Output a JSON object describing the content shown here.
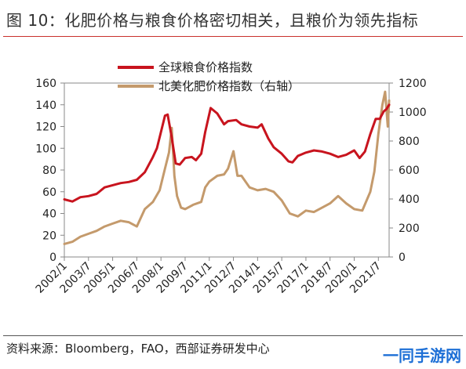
{
  "header": {
    "title": "图 10：化肥价格与粮食价格密切相关，且粮价为领先指标"
  },
  "footer": {
    "source": "资料来源：Bloomberg，FAO，西部证券研发中心",
    "watermark": "一同手游网"
  },
  "chart_data": {
    "type": "line",
    "title": "",
    "legend": {
      "placement": "top-center",
      "entries": [
        "全球粮食价格指数",
        "北美化肥价格指数（右轴）"
      ]
    },
    "x_tick_labels": [
      "2002/1",
      "2003/7",
      "2005/1",
      "2006/7",
      "2008/1",
      "2009/7",
      "2011/1",
      "2012/7",
      "2014/1",
      "2015/7",
      "2017/1",
      "2018/7",
      "2020/1",
      "2021/7"
    ],
    "x_range": [
      "2002/1",
      "2022/3"
    ],
    "y_left": {
      "range": [
        0,
        160
      ],
      "ticks": [
        0,
        20,
        40,
        60,
        80,
        100,
        120,
        140,
        160
      ]
    },
    "y_right": {
      "range": [
        0,
        1200
      ],
      "ticks": [
        0,
        200,
        400,
        600,
        800,
        1000,
        1200
      ]
    },
    "grid": false,
    "series": [
      {
        "name": "全球粮食价格指数",
        "axis": "left",
        "color": "#c8141e",
        "points": [
          [
            "2002/1",
            53
          ],
          [
            "2002/7",
            51
          ],
          [
            "2003/1",
            55
          ],
          [
            "2003/7",
            56
          ],
          [
            "2004/1",
            58
          ],
          [
            "2004/7",
            64
          ],
          [
            "2005/1",
            66
          ],
          [
            "2005/7",
            68
          ],
          [
            "2006/1",
            69
          ],
          [
            "2006/7",
            71
          ],
          [
            "2007/1",
            78
          ],
          [
            "2007/7",
            92
          ],
          [
            "2007/10",
            100
          ],
          [
            "2008/1",
            115
          ],
          [
            "2008/4",
            130
          ],
          [
            "2008/6",
            131
          ],
          [
            "2008/9",
            110
          ],
          [
            "2008/12",
            86
          ],
          [
            "2009/3",
            85
          ],
          [
            "2009/7",
            91
          ],
          [
            "2009/12",
            92
          ],
          [
            "2010/3",
            89
          ],
          [
            "2010/7",
            95
          ],
          [
            "2010/10",
            115
          ],
          [
            "2011/2",
            137
          ],
          [
            "2011/7",
            132
          ],
          [
            "2011/12",
            122
          ],
          [
            "2012/3",
            125
          ],
          [
            "2012/9",
            126
          ],
          [
            "2013/1",
            122
          ],
          [
            "2013/7",
            120
          ],
          [
            "2014/1",
            119
          ],
          [
            "2014/4",
            122
          ],
          [
            "2014/9",
            109
          ],
          [
            "2015/1",
            101
          ],
          [
            "2015/7",
            95
          ],
          [
            "2015/12",
            88
          ],
          [
            "2016/3",
            87
          ],
          [
            "2016/7",
            93
          ],
          [
            "2017/1",
            96
          ],
          [
            "2017/7",
            98
          ],
          [
            "2018/1",
            97
          ],
          [
            "2018/7",
            95
          ],
          [
            "2019/1",
            92
          ],
          [
            "2019/7",
            94
          ],
          [
            "2020/1",
            98
          ],
          [
            "2020/5",
            91
          ],
          [
            "2020/9",
            97
          ],
          [
            "2021/1",
            113
          ],
          [
            "2021/5",
            127
          ],
          [
            "2021/8",
            127
          ],
          [
            "2021/11",
            134
          ],
          [
            "2022/1",
            136
          ],
          [
            "2022/3",
            140
          ]
        ]
      },
      {
        "name": "北美化肥价格指数（右轴）",
        "axis": "right",
        "color": "#c49a6c",
        "points": [
          [
            "2002/1",
            90
          ],
          [
            "2002/7",
            105
          ],
          [
            "2003/1",
            140
          ],
          [
            "2003/7",
            160
          ],
          [
            "2004/1",
            180
          ],
          [
            "2004/7",
            210
          ],
          [
            "2005/1",
            230
          ],
          [
            "2005/7",
            250
          ],
          [
            "2006/1",
            240
          ],
          [
            "2006/7",
            210
          ],
          [
            "2007/1",
            330
          ],
          [
            "2007/7",
            380
          ],
          [
            "2007/12",
            460
          ],
          [
            "2008/4",
            610
          ],
          [
            "2008/7",
            720
          ],
          [
            "2008/9",
            890
          ],
          [
            "2008/11",
            560
          ],
          [
            "2009/1",
            420
          ],
          [
            "2009/4",
            340
          ],
          [
            "2009/7",
            330
          ],
          [
            "2010/1",
            360
          ],
          [
            "2010/7",
            380
          ],
          [
            "2010/10",
            480
          ],
          [
            "2011/1",
            520
          ],
          [
            "2011/7",
            560
          ],
          [
            "2011/12",
            570
          ],
          [
            "2012/3",
            610
          ],
          [
            "2012/7",
            730
          ],
          [
            "2012/10",
            560
          ],
          [
            "2013/1",
            560
          ],
          [
            "2013/7",
            480
          ],
          [
            "2014/1",
            460
          ],
          [
            "2014/7",
            470
          ],
          [
            "2015/1",
            450
          ],
          [
            "2015/7",
            390
          ],
          [
            "2016/1",
            300
          ],
          [
            "2016/7",
            280
          ],
          [
            "2017/1",
            320
          ],
          [
            "2017/7",
            310
          ],
          [
            "2018/1",
            340
          ],
          [
            "2018/7",
            370
          ],
          [
            "2019/1",
            420
          ],
          [
            "2019/7",
            370
          ],
          [
            "2020/1",
            330
          ],
          [
            "2020/7",
            320
          ],
          [
            "2021/1",
            450
          ],
          [
            "2021/4",
            590
          ],
          [
            "2021/7",
            850
          ],
          [
            "2021/10",
            1050
          ],
          [
            "2021/12",
            1140
          ],
          [
            "2022/2",
            900
          ],
          [
            "2022/3",
            1080
          ]
        ]
      }
    ]
  }
}
